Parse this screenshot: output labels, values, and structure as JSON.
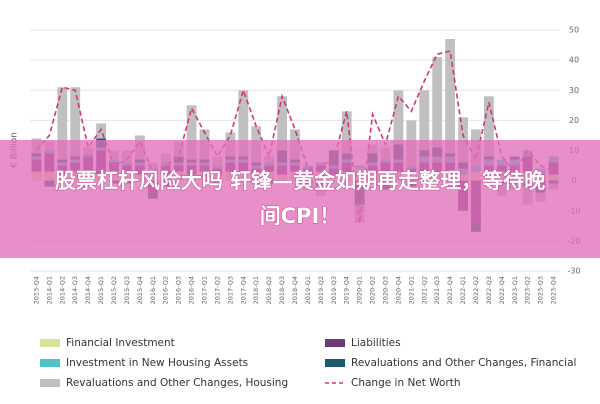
{
  "chart_data": {
    "type": "stacked_bar_line",
    "ylabel": "€ Billion",
    "categories": [
      "2013-Q4",
      "2014-Q1",
      "2014-Q2",
      "2014-Q3",
      "2014-Q4",
      "2015-Q1",
      "2015-Q2",
      "2015-Q3",
      "2015-Q4",
      "2016-Q1",
      "2016-Q2",
      "2016-Q3",
      "2016-Q4",
      "2017-Q1",
      "2017-Q2",
      "2017-Q3",
      "2017-Q4",
      "2018-Q1",
      "2018-Q2",
      "2018-Q3",
      "2018-Q4",
      "2019-Q1",
      "2019-Q2",
      "2019-Q3",
      "2019-Q4",
      "2020-Q1",
      "2020-Q2",
      "2020-Q3",
      "2020-Q4",
      "2021-Q1",
      "2021-Q2",
      "2021-Q3",
      "2021-Q4",
      "2022-Q1",
      "2022-Q2",
      "2022-Q3",
      "2022-Q4",
      "2023-Q1",
      "2023-Q2",
      "2023-Q3",
      "2023-Q4"
    ],
    "series": [
      {
        "name": "Financial Investment",
        "color": "#d4e59a",
        "kind": "bar",
        "values": [
          3,
          3,
          2,
          3,
          3,
          2,
          3,
          3,
          2,
          3,
          2,
          3,
          2,
          3,
          2,
          3,
          3,
          2,
          3,
          2,
          3,
          2,
          3,
          2,
          3,
          4,
          3,
          2,
          3,
          2,
          3,
          3,
          3,
          2,
          3,
          2,
          3,
          2,
          3,
          2,
          2
        ]
      },
      {
        "name": "Liabilities",
        "color": "#6a3d7a",
        "kind": "bar",
        "values": [
          4,
          6,
          3,
          3,
          5,
          8,
          3,
          2,
          3,
          -4,
          3,
          2,
          3,
          2,
          2,
          3,
          3,
          2,
          2,
          3,
          2,
          2,
          2,
          2,
          3,
          -3,
          2,
          4,
          3,
          2,
          3,
          3,
          3,
          -10,
          -14,
          3,
          2,
          3,
          5,
          -2,
          4
        ]
      },
      {
        "name": "Investment in New Housing Assets",
        "color": "#4fc3c8",
        "kind": "bar",
        "values": [
          1,
          1,
          1,
          1,
          1,
          1,
          1,
          1,
          1,
          1,
          1,
          1,
          1,
          1,
          1,
          1,
          1,
          1,
          1,
          1,
          1,
          1,
          1,
          1,
          1,
          1,
          1,
          1,
          1,
          1,
          2,
          2,
          2,
          2,
          2,
          2,
          2,
          2,
          2,
          2,
          2
        ]
      },
      {
        "name": "Revaluations and Other Changes, Financial",
        "color": "#1c5a6e",
        "kind": "bar",
        "values": [
          1,
          -2,
          1,
          1,
          -2,
          3,
          -1,
          -1,
          1,
          -2,
          -2,
          2,
          1,
          1,
          -1,
          1,
          1,
          1,
          -1,
          4,
          1,
          -1,
          -2,
          5,
          2,
          -5,
          3,
          -3,
          5,
          -2,
          2,
          3,
          1,
          2,
          -3,
          1,
          -1,
          1,
          -2,
          -2,
          -1
        ]
      },
      {
        "name": "Revaluations and Other Changes, Housing",
        "color": "#c0c0c0",
        "kind": "bar",
        "values": [
          5,
          3,
          24,
          23,
          2,
          5,
          3,
          4,
          8,
          2,
          3,
          5,
          18,
          10,
          3,
          8,
          22,
          12,
          2,
          18,
          10,
          -2,
          -3,
          0,
          14,
          -6,
          3,
          4,
          18,
          15,
          20,
          30,
          38,
          15,
          12,
          20,
          -4,
          -3,
          -6,
          -3,
          -2
        ]
      },
      {
        "name": "Change in Net Worth",
        "color": "#d6337f",
        "kind": "line",
        "values": [
          10,
          15,
          31,
          30,
          11,
          17,
          5,
          7,
          13,
          3,
          5,
          8,
          24,
          16,
          8,
          15,
          30,
          18,
          8,
          28,
          17,
          4,
          5,
          7,
          23,
          -14,
          22,
          12,
          28,
          23,
          33,
          42,
          43,
          15,
          7,
          26,
          8,
          3,
          10,
          5,
          3
        ]
      }
    ],
    "ylim": [
      -30,
      50
    ],
    "yticks": [
      -30,
      -20,
      -10,
      0,
      10,
      20,
      30,
      40,
      50
    ],
    "grid": true
  },
  "overlay": {
    "lines": [
      "股票杠杆风险大吗 轩锋—黄金如期再走整理，等待晚",
      "间CPI！"
    ],
    "color": "rgba(226,112,186,0.78)"
  }
}
